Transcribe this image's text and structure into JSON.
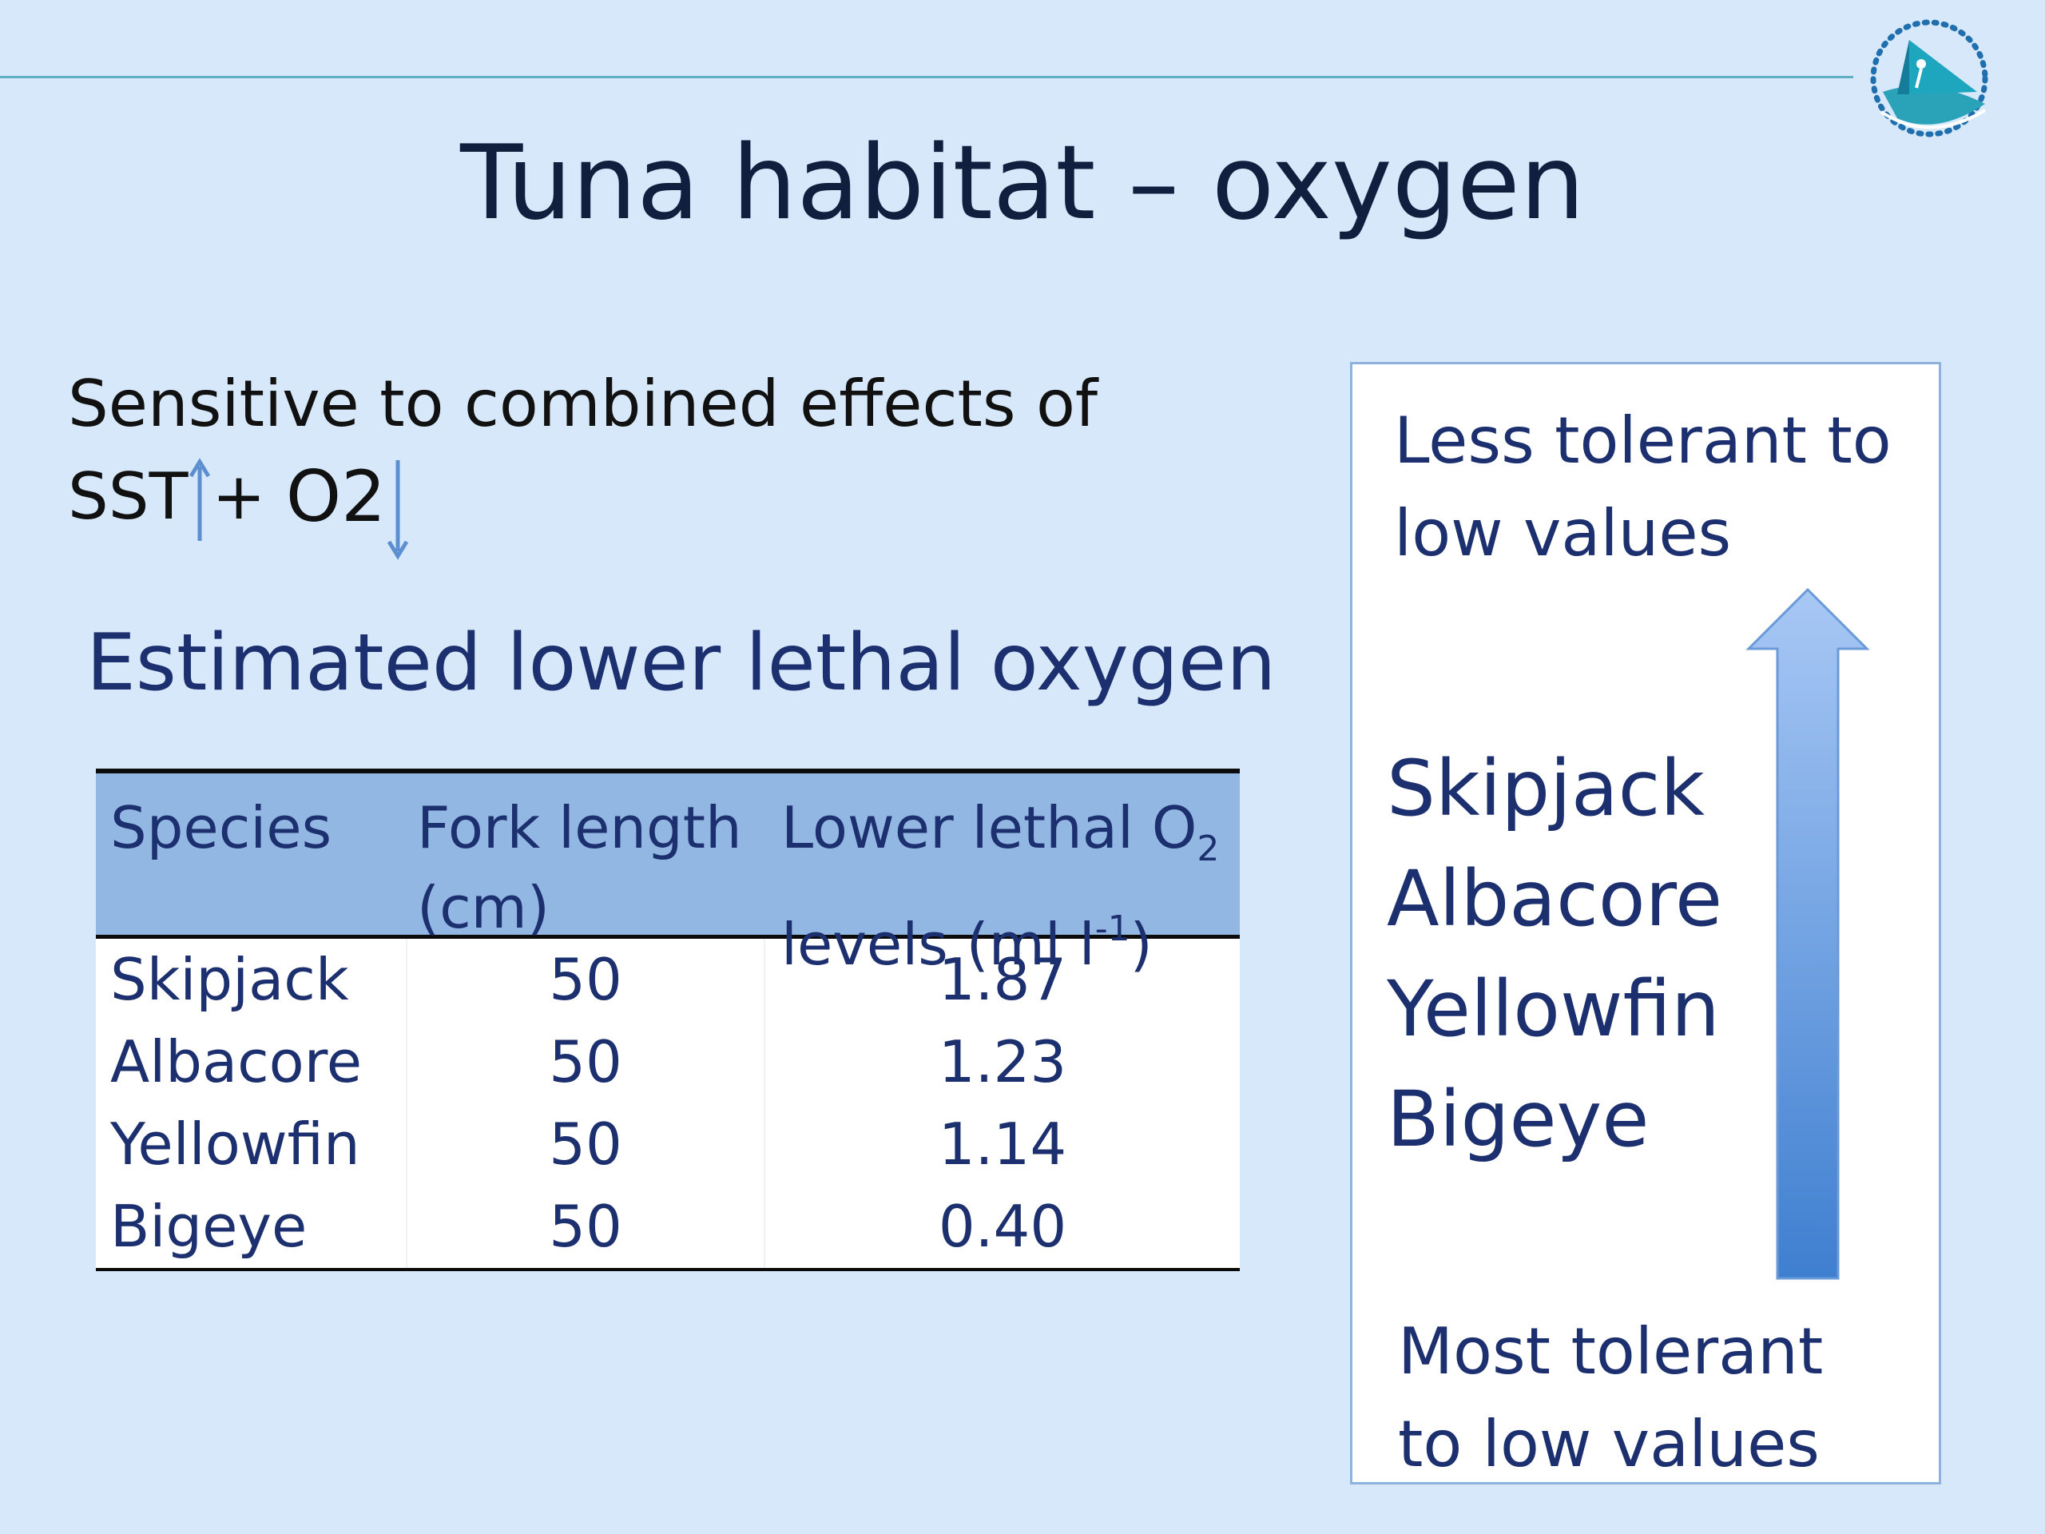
{
  "title": "Tuna habitat – oxygen",
  "intro": {
    "line1": "Sensitive to combined effects of",
    "sst": "SST",
    "plus": "+",
    "o2": "O2",
    "sst_arrow_icon": "arrow-up-icon",
    "o2_arrow_icon": "arrow-down-icon"
  },
  "subtitle": "Estimated lower lethal oxygen",
  "table": {
    "headers": {
      "species": "Species",
      "fork_length_1": "Fork length",
      "fork_length_2": "(cm)",
      "lethal_1": "Lower lethal O",
      "lethal_sub": "2",
      "lethal_2": "levels (ml l",
      "lethal_sup": "-1",
      "lethal_close": ")"
    },
    "rows": [
      {
        "species": "Skipjack",
        "fork_length": "50",
        "lethal": "1.87"
      },
      {
        "species": "Albacore",
        "fork_length": "50",
        "lethal": "1.23"
      },
      {
        "species": "Yellowfin",
        "fork_length": "50",
        "lethal": "1.14"
      },
      {
        "species": "Bigeye",
        "fork_length": "50",
        "lethal": "0.40"
      }
    ]
  },
  "tolerance": {
    "top_1": "Less tolerant to",
    "top_2": "low values",
    "species": [
      "Skipjack",
      "Albacore",
      "Yellowfin",
      "Bigeye"
    ],
    "bottom_1": "Most tolerant",
    "bottom_2": "to low values",
    "arrow_icon": "arrow-up-icon"
  },
  "logo_icon": "sail-logo-icon",
  "colors": {
    "background": "#d6e8fa",
    "header_fill": "#93b7e3",
    "accent_line": "#5fb0c4",
    "text_navy": "#1c2f6e"
  }
}
